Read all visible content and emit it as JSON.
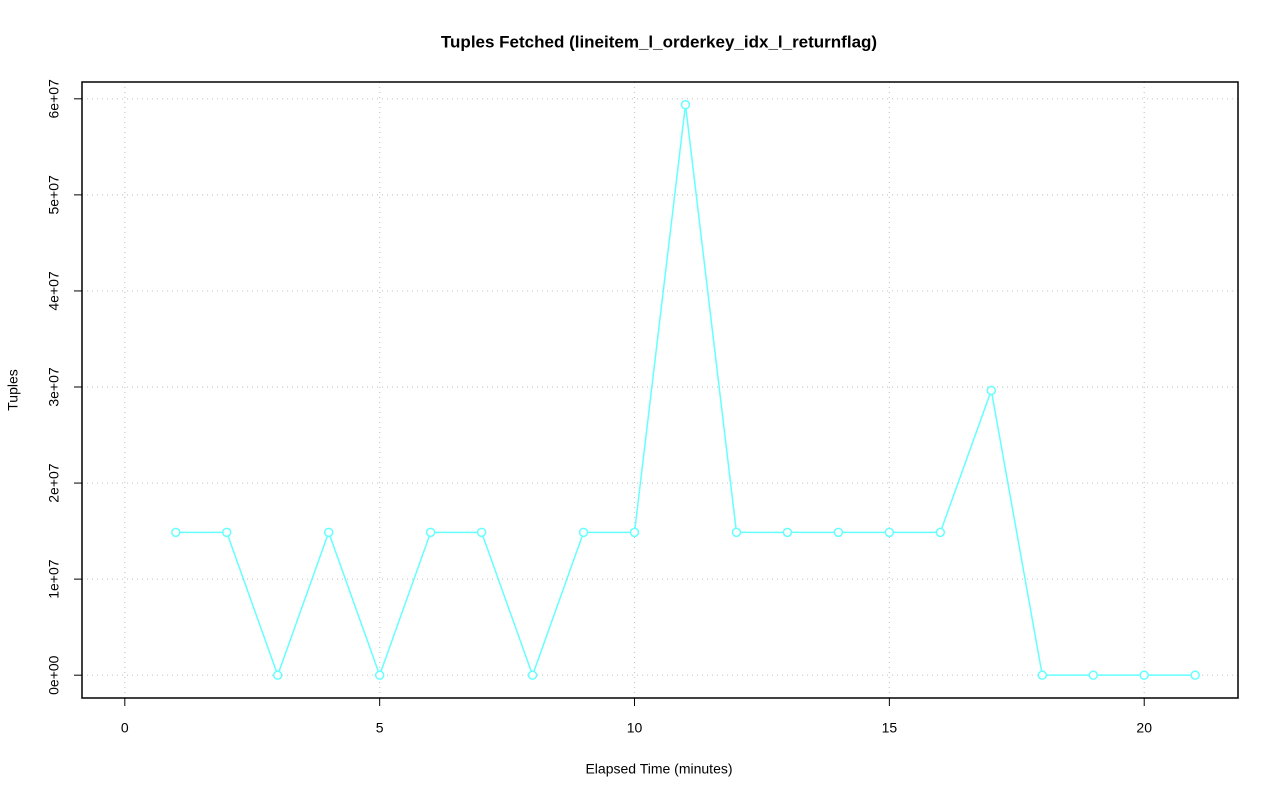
{
  "chart_data": {
    "type": "line",
    "title": "Tuples Fetched (lineitem_l_orderkey_idx_l_returnflag)",
    "x_label": "Elapsed Time (minutes)",
    "y_label": "Tuples",
    "x": [
      1,
      2,
      3,
      4,
      5,
      6,
      7,
      8,
      9,
      10,
      11,
      12,
      13,
      14,
      15,
      16,
      17,
      18,
      19,
      20,
      21
    ],
    "series": [
      {
        "name": "Tuples",
        "color": "#66ffff",
        "values": [
          14870000,
          14870000,
          0,
          14870000,
          0,
          14870000,
          14870000,
          0,
          14870000,
          14870000,
          59380000,
          14870000,
          14870000,
          14870000,
          14870000,
          14870000,
          29640000,
          0,
          0,
          0,
          0
        ]
      }
    ],
    "xlim": [
      -0.84,
      21.84
    ],
    "ylim": [
      -2375000,
      61750000
    ],
    "xticks": [
      0,
      5,
      10,
      15,
      20
    ],
    "yticks": [
      {
        "value": 0,
        "label": "0e+00"
      },
      {
        "value": 10000000,
        "label": "1e+07"
      },
      {
        "value": 20000000,
        "label": "2e+07"
      },
      {
        "value": 30000000,
        "label": "3e+07"
      },
      {
        "value": 40000000,
        "label": "4e+07"
      },
      {
        "value": 50000000,
        "label": "5e+07"
      },
      {
        "value": 60000000,
        "label": "6e+07"
      }
    ],
    "grid": true
  }
}
